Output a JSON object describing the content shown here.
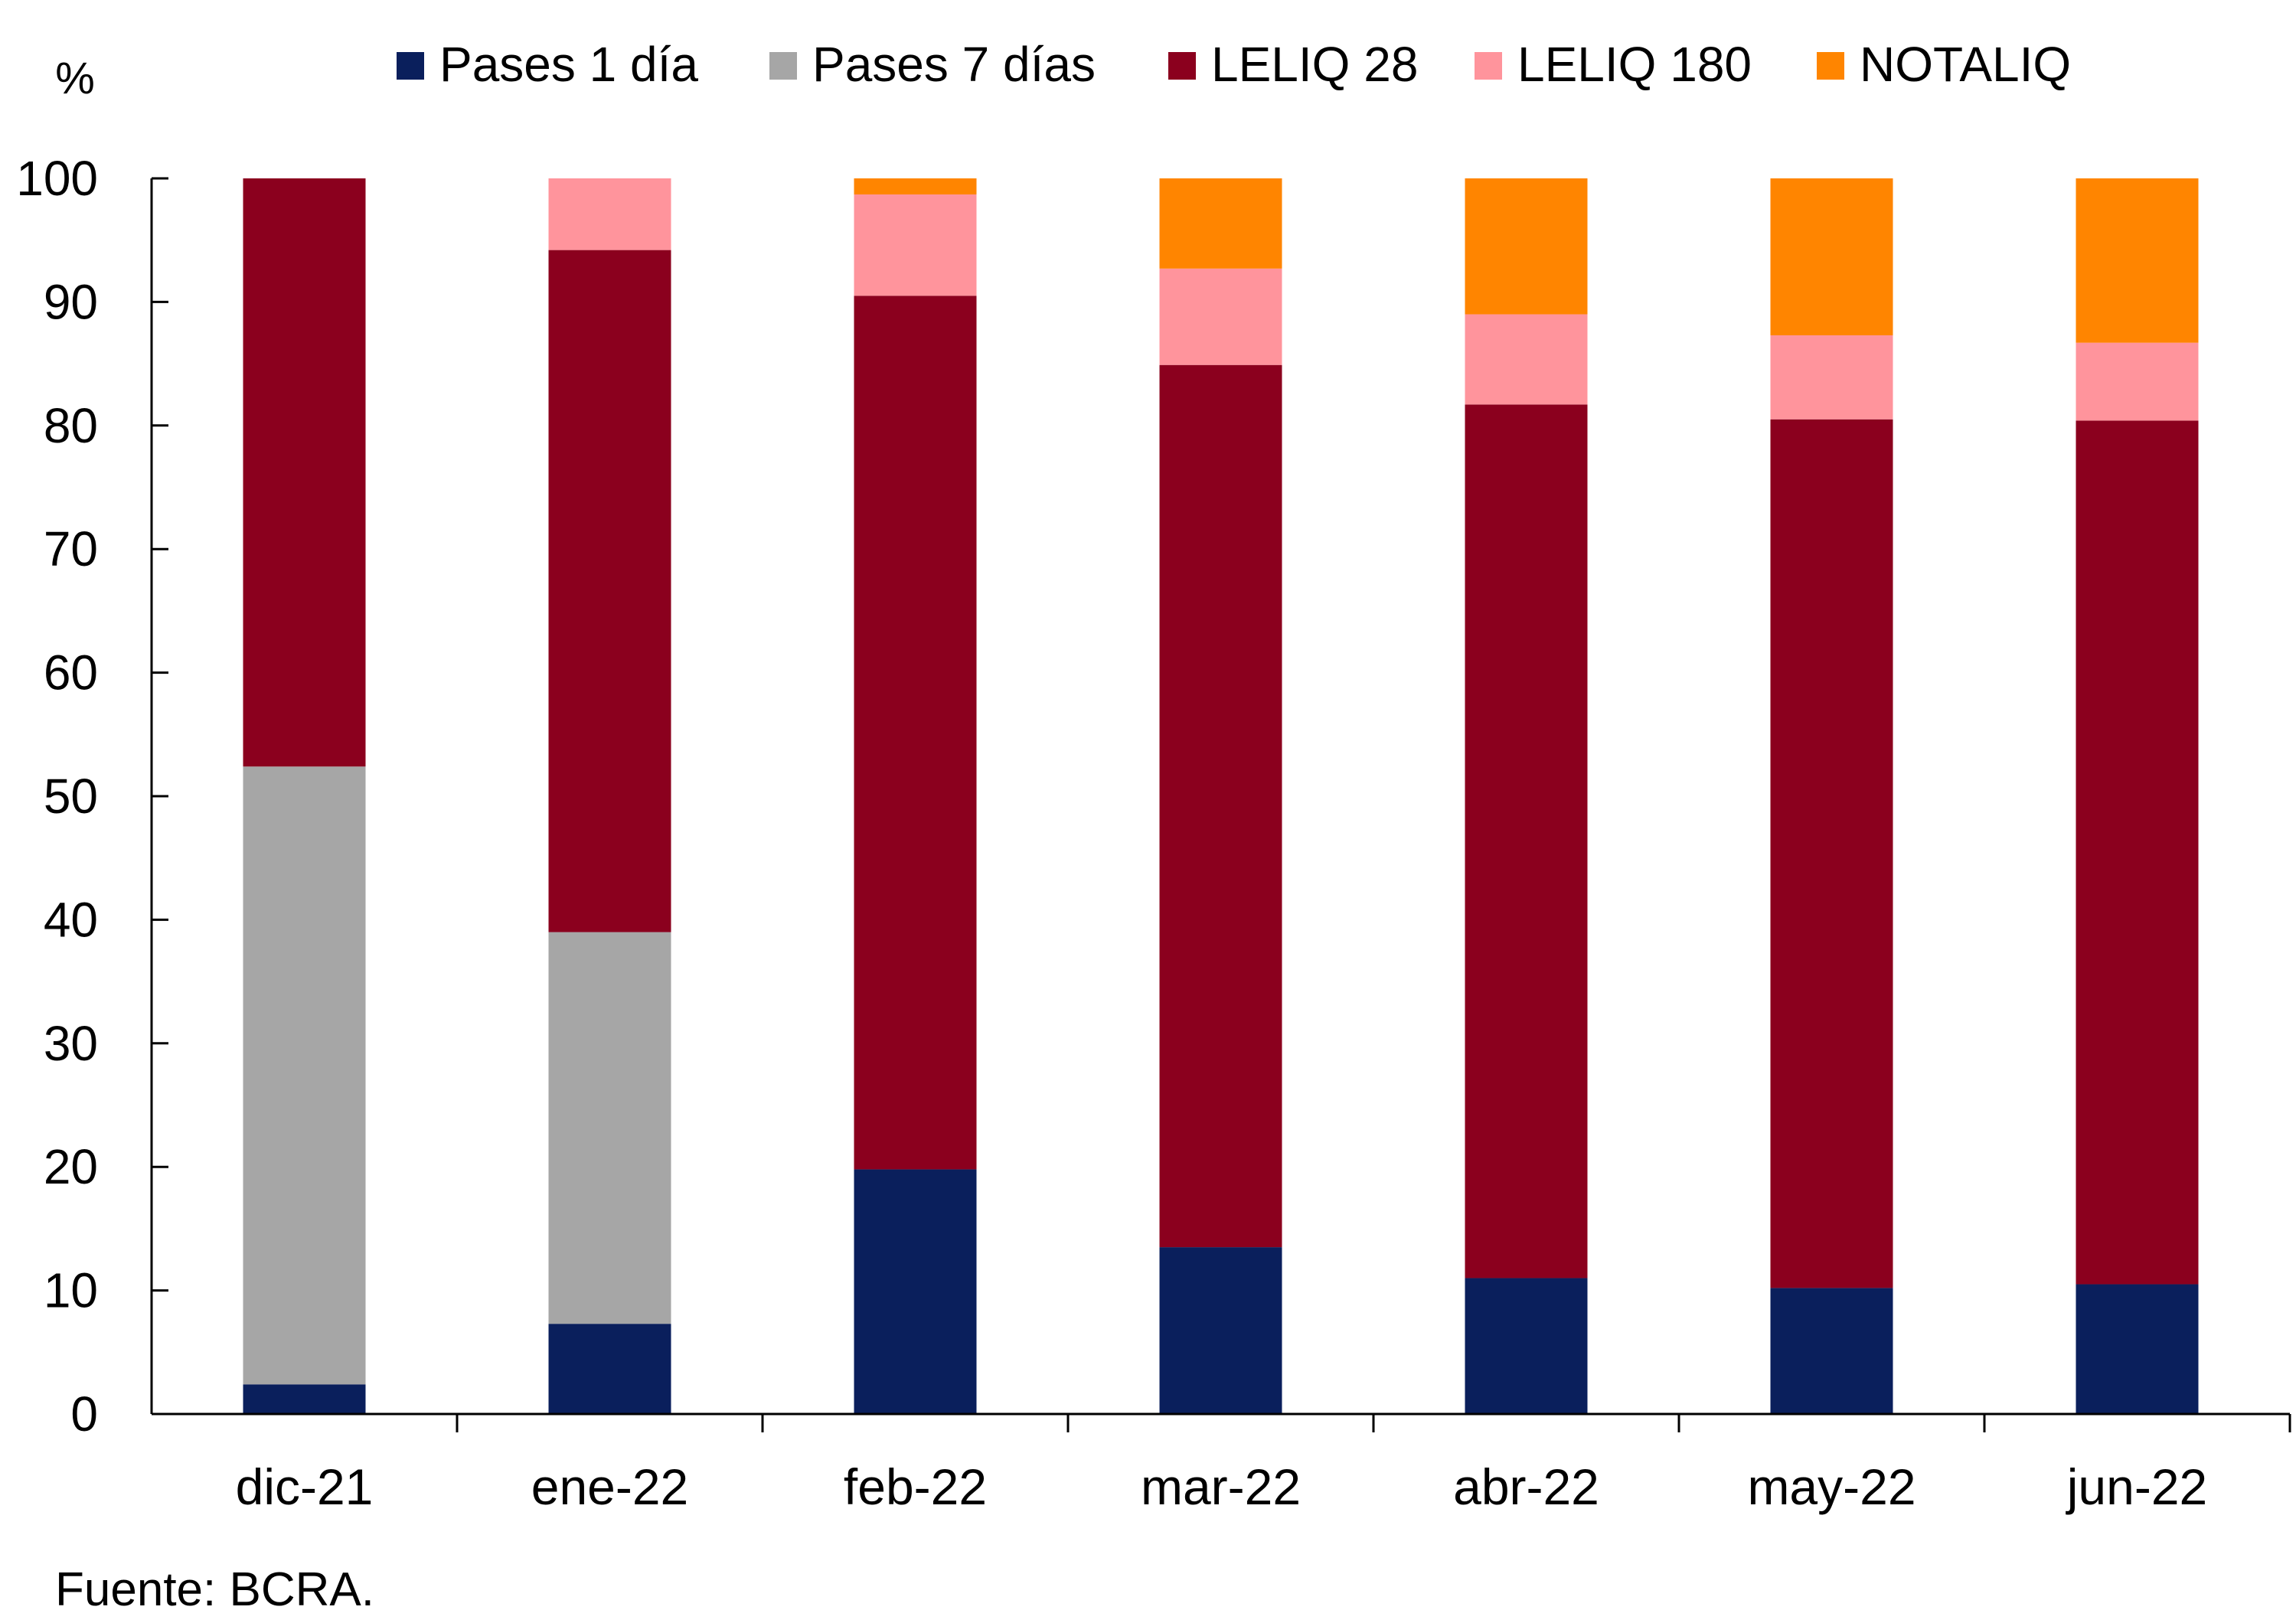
{
  "chart_data": {
    "type": "bar",
    "stacked": true,
    "title": "",
    "ylabel": "%",
    "xlabel": "",
    "ylim": [
      0,
      100
    ],
    "yticks": [
      0,
      10,
      20,
      30,
      40,
      50,
      60,
      70,
      80,
      90,
      100
    ],
    "grid": false,
    "legend_position": "top",
    "categories": [
      "dic-21",
      "ene-22",
      "feb-22",
      "mar-22",
      "abr-22",
      "may-22",
      "jun-22"
    ],
    "series": [
      {
        "name": "Pases 1 día",
        "color": "#0a1f5c",
        "values": [
          2.4,
          7.3,
          19.8,
          13.5,
          11.0,
          10.2,
          10.5
        ]
      },
      {
        "name": "Pases 7 días",
        "color": "#a6a6a6",
        "values": [
          50.0,
          31.7,
          0,
          0,
          0,
          0,
          0
        ]
      },
      {
        "name": "LELIQ 28",
        "color": "#8b001e",
        "values": [
          47.6,
          55.2,
          70.7,
          71.4,
          70.7,
          70.3,
          69.9
        ]
      },
      {
        "name": "LELIQ 180",
        "color": "#ff949c",
        "values": [
          0,
          5.8,
          8.2,
          7.8,
          7.3,
          6.8,
          6.3
        ]
      },
      {
        "name": "NOTALIQ",
        "color": "#ff8500",
        "values": [
          0,
          0,
          1.3,
          7.3,
          11.0,
          12.7,
          13.3
        ]
      }
    ],
    "source": "Fuente: BCRA."
  }
}
